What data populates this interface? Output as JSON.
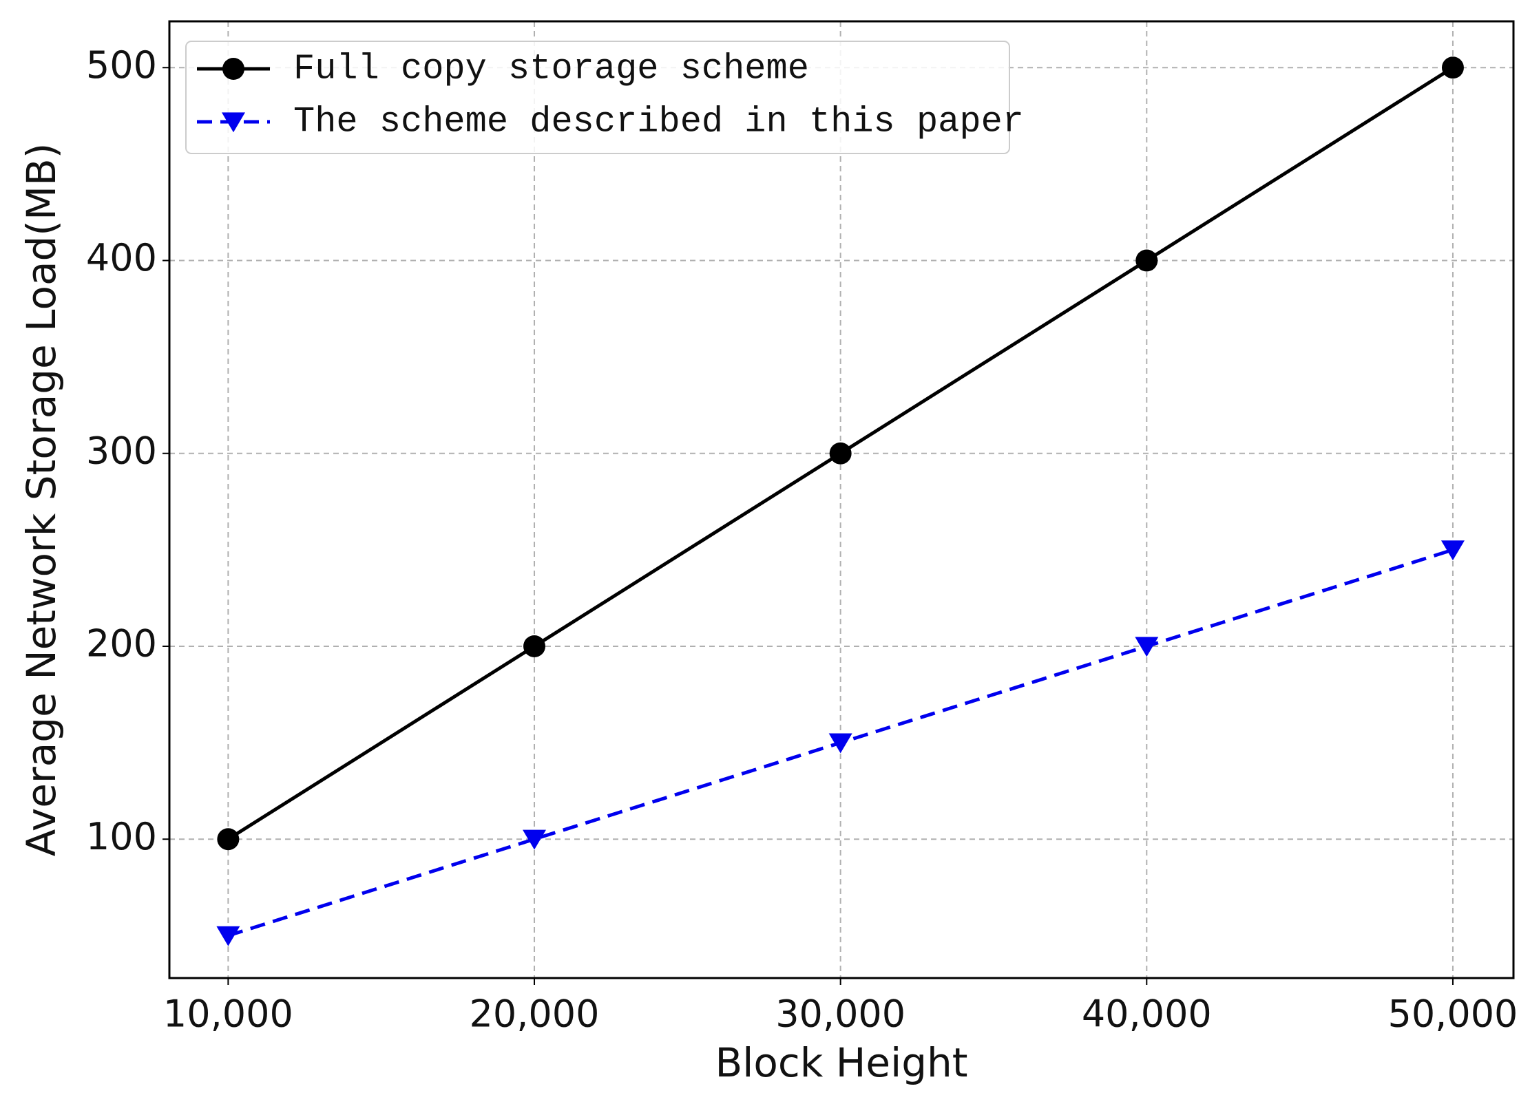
{
  "chart_data": {
    "type": "line",
    "x_label": "Block Height",
    "y_label": "Average Network Storage Load(MB)",
    "x": [
      10000,
      20000,
      30000,
      40000,
      50000
    ],
    "xlim": [
      8080,
      51980
    ],
    "xticks": [
      {
        "value": 10000,
        "label": "10,000"
      },
      {
        "value": 20000,
        "label": "20,000"
      },
      {
        "value": 30000,
        "label": "30,000"
      },
      {
        "value": 40000,
        "label": "40,000"
      },
      {
        "value": 50000,
        "label": "50,000"
      }
    ],
    "ylim": [
      28,
      524
    ],
    "yticks": [
      100,
      200,
      300,
      400,
      500
    ],
    "grid": true,
    "legend": "upper left",
    "series": [
      {
        "name": "Full copy storage scheme",
        "color": "#000000",
        "marker": "circle",
        "linestyle": "solid",
        "values": [
          100,
          200,
          300,
          400,
          500
        ]
      },
      {
        "name": "The scheme described in this paper",
        "color": "#0000ee",
        "marker": "triangle-down",
        "linestyle": "dashed",
        "values": [
          50,
          100,
          150,
          200,
          250
        ]
      }
    ]
  }
}
